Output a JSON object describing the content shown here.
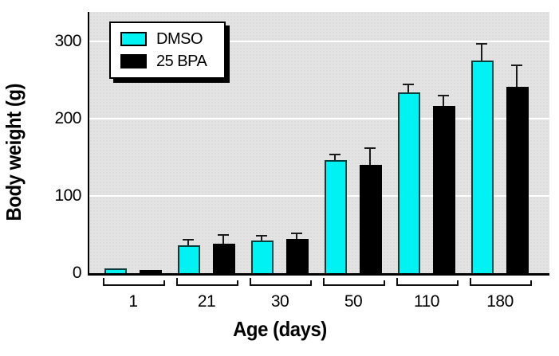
{
  "chart_data": {
    "type": "bar",
    "title": "",
    "xlabel": "Age (days)",
    "ylabel": "Body weight (g)",
    "categories": [
      "1",
      "21",
      "30",
      "50",
      "110",
      "180"
    ],
    "series": [
      {
        "name": "DMSO",
        "color": "#00f2f2",
        "values": [
          6,
          36,
          42,
          146,
          234,
          275
        ],
        "errors": [
          0,
          6,
          5,
          7,
          9,
          21
        ]
      },
      {
        "name": "25 BPA",
        "color": "#000000",
        "values": [
          4,
          38,
          44,
          140,
          217,
          241
        ],
        "errors": [
          0,
          10,
          7,
          21,
          12,
          27
        ]
      }
    ],
    "yticks": [
      0,
      100,
      200,
      300
    ],
    "ylim": [
      0,
      338
    ],
    "grid": "horizontal",
    "gridline_color": "#ffffff",
    "plot_bg": "#e3e3e3",
    "legend_position": "top-left",
    "error_bars": "upper-cap"
  }
}
